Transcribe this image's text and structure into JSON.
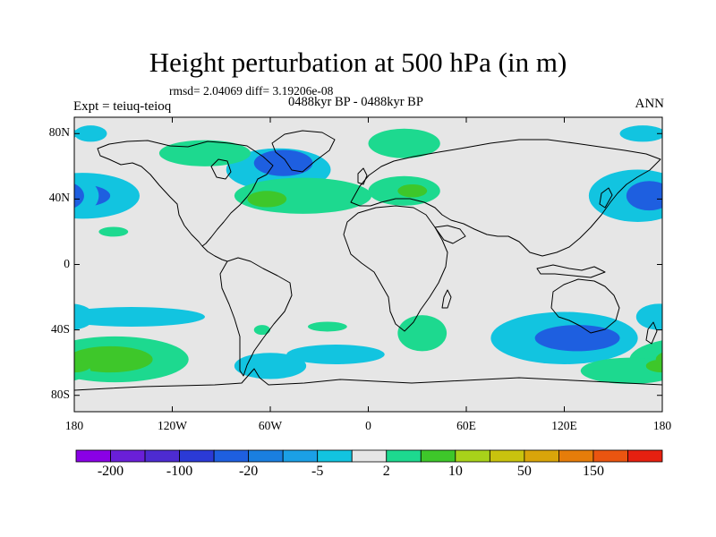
{
  "title": "Height perturbation at 500 hPa (in m)",
  "stats": "rmsd= 2.04069 diff= 3.19206e-08",
  "period": "0488kyr BP - 0488kyr BP",
  "expt": "Expt = teiuq-teioq",
  "season": "ANN",
  "map": {
    "projection": "cylindrical-equidistant",
    "lon_range": [
      -180,
      180
    ],
    "lat_range": [
      -90,
      90
    ],
    "background_color": "#e6e6e6",
    "lat_ticks": [
      {
        "value": 80,
        "label": "80N"
      },
      {
        "value": 40,
        "label": "40N"
      },
      {
        "value": 0,
        "label": "0"
      },
      {
        "value": -40,
        "label": "40S"
      },
      {
        "value": -80,
        "label": "80S"
      }
    ],
    "lon_ticks": [
      {
        "value": -180,
        "label": "180"
      },
      {
        "value": -120,
        "label": "120W"
      },
      {
        "value": -60,
        "label": "60W"
      },
      {
        "value": 0,
        "label": "0"
      },
      {
        "value": 60,
        "label": "60E"
      },
      {
        "value": 120,
        "label": "120E"
      },
      {
        "value": 180,
        "label": "180"
      }
    ]
  },
  "colorbar": {
    "colors": [
      "#8a00e6",
      "#6a1fd8",
      "#4d2bd1",
      "#2b3ad6",
      "#1e5fe0",
      "#1a7fe0",
      "#1ba0e6",
      "#12c4e0",
      "#e6e6e6",
      "#1dd98f",
      "#3ec72a",
      "#a8d21a",
      "#c9c30e",
      "#d9a50a",
      "#e67d0a",
      "#ea5510",
      "#e62010"
    ],
    "labels": [
      "-200",
      "-100",
      "-20",
      "-5",
      "2",
      "10",
      "50",
      "150"
    ]
  },
  "anomalies": [
    {
      "lon": -55,
      "lat": 58,
      "rx": 32,
      "ry": 13,
      "level": -5
    },
    {
      "lon": -52,
      "lat": 62,
      "rx": 18,
      "ry": 8,
      "level": -20
    },
    {
      "lon": -100,
      "lat": 68,
      "rx": 28,
      "ry": 8,
      "level": 5
    },
    {
      "lon": 22,
      "lat": 74,
      "rx": 22,
      "ry": 9,
      "level": 5
    },
    {
      "lon": -170,
      "lat": 80,
      "rx": 10,
      "ry": 5,
      "level": -5
    },
    {
      "lon": 168,
      "lat": 80,
      "rx": 14,
      "ry": 5,
      "level": -5
    },
    {
      "lon": -40,
      "lat": 42,
      "rx": 42,
      "ry": 11,
      "level": 5
    },
    {
      "lon": -62,
      "lat": 40,
      "rx": 12,
      "ry": 5,
      "level": 10
    },
    {
      "lon": 22,
      "lat": 45,
      "rx": 22,
      "ry": 9,
      "level": 5
    },
    {
      "lon": 27,
      "lat": 45,
      "rx": 9,
      "ry": 4,
      "level": 10
    },
    {
      "lon": -175,
      "lat": 42,
      "rx": 35,
      "ry": 14,
      "level": -5
    },
    {
      "lon": -178,
      "lat": 42,
      "rx": 20,
      "ry": 7,
      "level": -20
    },
    {
      "lon": 165,
      "lat": 42,
      "rx": 30,
      "ry": 16,
      "level": -5
    },
    {
      "lon": 172,
      "lat": 42,
      "rx": 14,
      "ry": 9,
      "level": -20
    },
    {
      "lon": -156,
      "lat": 20,
      "rx": 9,
      "ry": 3,
      "level": 5
    },
    {
      "lon": -145,
      "lat": -32,
      "rx": 45,
      "ry": 6,
      "level": -5
    },
    {
      "lon": -155,
      "lat": -58,
      "rx": 45,
      "ry": 14,
      "level": 5
    },
    {
      "lon": -158,
      "lat": -58,
      "rx": 26,
      "ry": 8,
      "level": 10
    },
    {
      "lon": -60,
      "lat": -62,
      "rx": 22,
      "ry": 8,
      "level": -5
    },
    {
      "lon": -20,
      "lat": -55,
      "rx": 30,
      "ry": 6,
      "level": -5
    },
    {
      "lon": -65,
      "lat": -40,
      "rx": 5,
      "ry": 3,
      "level": 5
    },
    {
      "lon": -25,
      "lat": -38,
      "rx": 12,
      "ry": 3,
      "level": 5
    },
    {
      "lon": 33,
      "lat": -42,
      "rx": 15,
      "ry": 11,
      "level": 5
    },
    {
      "lon": 120,
      "lat": -45,
      "rx": 45,
      "ry": 16,
      "level": -5
    },
    {
      "lon": 128,
      "lat": -45,
      "rx": 26,
      "ry": 8,
      "level": -20
    },
    {
      "lon": 178,
      "lat": -32,
      "rx": 14,
      "ry": 8,
      "level": -5
    },
    {
      "lon": 160,
      "lat": -65,
      "rx": 30,
      "ry": 8,
      "level": 5
    },
    {
      "lon": 180,
      "lat": -62,
      "rx": 10,
      "ry": 4,
      "level": 10
    }
  ]
}
